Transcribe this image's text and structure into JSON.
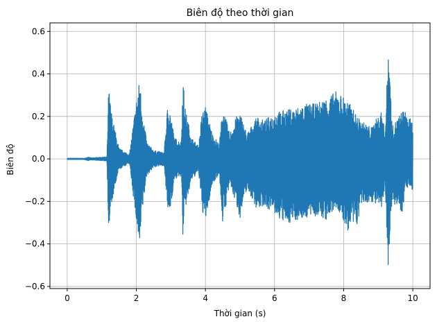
{
  "chart_data": {
    "type": "line",
    "title": "Biên độ theo thời gian",
    "xlabel": "Thời gian (s)",
    "ylabel": "Biên độ",
    "xlim": [
      -0.5,
      10.5
    ],
    "ylim": [
      -0.61,
      0.64
    ],
    "xticks": [
      0,
      2,
      4,
      6,
      8,
      10
    ],
    "xtick_labels": [
      "0",
      "2",
      "4",
      "6",
      "8",
      "10"
    ],
    "yticks": [
      -0.6,
      -0.4,
      -0.2,
      0.0,
      0.2,
      0.4,
      0.6
    ],
    "ytick_labels": [
      "−0.6",
      "−0.4",
      "−0.2",
      "0.0",
      "0.2",
      "0.4",
      "0.6"
    ],
    "grid": true,
    "series": [
      {
        "color": "#1f77b4",
        "envelope": {
          "x": [
            0.0,
            0.5,
            0.6,
            0.7,
            1.15,
            1.2,
            1.23,
            1.3,
            1.5,
            1.8,
            2.0,
            2.1,
            2.15,
            2.3,
            2.5,
            2.8,
            2.9,
            2.95,
            3.1,
            3.3,
            3.35,
            3.4,
            3.6,
            3.8,
            3.9,
            4.0,
            4.2,
            4.4,
            4.5,
            4.7,
            4.9,
            5.0,
            5.2,
            5.5,
            5.7,
            6.0,
            6.3,
            6.6,
            6.9,
            7.2,
            7.5,
            7.8,
            8.1,
            8.4,
            8.5,
            8.8,
            9.1,
            9.2,
            9.3,
            9.4,
            9.7,
            9.8,
            10.0
          ],
          "upper": [
            0.003,
            0.003,
            0.008,
            0.005,
            0.01,
            0.35,
            0.29,
            0.2,
            0.05,
            0.02,
            0.28,
            0.38,
            0.27,
            0.08,
            0.04,
            0.03,
            0.24,
            0.26,
            0.1,
            0.08,
            0.41,
            0.25,
            0.1,
            0.06,
            0.22,
            0.25,
            0.12,
            0.07,
            0.25,
            0.12,
            0.2,
            0.22,
            0.12,
            0.2,
            0.18,
            0.22,
            0.23,
            0.24,
            0.26,
            0.26,
            0.29,
            0.32,
            0.28,
            0.2,
            0.18,
            0.15,
            0.23,
            0.12,
            0.58,
            0.15,
            0.23,
            0.22,
            0.17
          ],
          "lower": [
            -0.003,
            -0.003,
            -0.008,
            -0.005,
            -0.01,
            -0.36,
            -0.3,
            -0.2,
            -0.05,
            -0.02,
            -0.3,
            -0.45,
            -0.28,
            -0.08,
            -0.04,
            -0.03,
            -0.23,
            -0.28,
            -0.1,
            -0.08,
            -0.39,
            -0.25,
            -0.1,
            -0.06,
            -0.24,
            -0.3,
            -0.12,
            -0.07,
            -0.31,
            -0.12,
            -0.22,
            -0.28,
            -0.14,
            -0.24,
            -0.22,
            -0.26,
            -0.31,
            -0.29,
            -0.28,
            -0.27,
            -0.29,
            -0.23,
            -0.34,
            -0.31,
            -0.22,
            -0.2,
            -0.24,
            -0.14,
            -0.55,
            -0.2,
            -0.25,
            -0.13,
            -0.15
          ]
        }
      }
    ]
  }
}
